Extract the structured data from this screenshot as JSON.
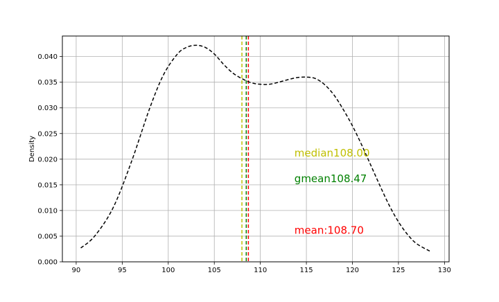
{
  "chart_data": {
    "type": "line",
    "title": "",
    "xlabel": "",
    "ylabel": "Density",
    "xlim": [
      88.5,
      130.5
    ],
    "ylim": [
      0.0,
      0.044
    ],
    "grid": true,
    "xticks": [
      90,
      95,
      100,
      105,
      110,
      115,
      120,
      125,
      130
    ],
    "yticks": [
      0.0,
      0.005,
      0.01,
      0.015,
      0.02,
      0.025,
      0.03,
      0.035,
      0.04
    ],
    "ytick_labels": [
      "0.000",
      "0.005",
      "0.010",
      "0.015",
      "0.020",
      "0.025",
      "0.030",
      "0.035",
      "0.040"
    ],
    "series": [
      {
        "color": "#000000",
        "style": "dashed",
        "x": [
          90.5,
          92,
          94,
          96,
          98,
          99.5,
          101,
          102,
          103,
          104,
          105,
          106,
          107,
          108,
          109,
          110,
          111,
          112,
          113,
          114,
          115,
          116,
          117,
          118,
          119,
          120,
          121,
          122,
          123,
          124,
          125,
          126,
          127,
          128.5
        ],
        "y": [
          0.0027,
          0.005,
          0.0105,
          0.0195,
          0.03,
          0.0365,
          0.0405,
          0.0418,
          0.0422,
          0.0418,
          0.0405,
          0.0385,
          0.0368,
          0.0357,
          0.0349,
          0.0346,
          0.0346,
          0.035,
          0.0355,
          0.0359,
          0.036,
          0.0357,
          0.0345,
          0.0325,
          0.0297,
          0.0265,
          0.0228,
          0.0188,
          0.0148,
          0.011,
          0.0078,
          0.0053,
          0.0035,
          0.002
        ]
      }
    ],
    "vlines": [
      {
        "x": 108.0,
        "color": "#bfbf00"
      },
      {
        "x": 108.47,
        "color": "#008000"
      },
      {
        "x": 108.7,
        "color": "#ff0000"
      }
    ],
    "annotations": [
      {
        "text": "median108.00",
        "x": 113.7,
        "y": 0.0205,
        "color": "#bfbf00"
      },
      {
        "text": "gmean108.47",
        "x": 113.7,
        "y": 0.0155,
        "color": "#008000"
      },
      {
        "text": "mean:108.70",
        "x": 113.7,
        "y": 0.0055,
        "color": "#ff0000"
      }
    ]
  }
}
